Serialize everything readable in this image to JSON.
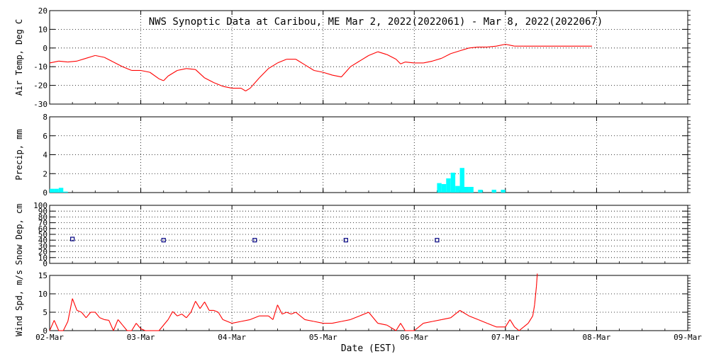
{
  "title": "NWS Synoptic Data at Caribou, ME   Mar  2, 2022(2022061) - Mar  8, 2022(2022067)",
  "xlabel": "Date (EST)",
  "x_ticks": [
    "02-Mar",
    "03-Mar",
    "04-Mar",
    "05-Mar",
    "06-Mar",
    "07-Mar",
    "08-Mar",
    "09-Mar"
  ],
  "colors": {
    "line": "#ff0000",
    "bar": "#00ffff",
    "marker": "#000080",
    "grid": "#000000"
  },
  "chart_data": [
    {
      "id": "air-temp",
      "type": "line",
      "ylabel": "Air Temp, Deg C",
      "ylim": [
        -30,
        20
      ],
      "yticks": [
        -30,
        -20,
        -10,
        0,
        10,
        20
      ],
      "grid": "dotted",
      "x_unit": "days since 02-Mar 00:00 EST",
      "x": [
        0,
        0.1,
        0.2,
        0.3,
        0.4,
        0.5,
        0.6,
        0.7,
        0.8,
        0.9,
        1.0,
        1.1,
        1.2,
        1.25,
        1.3,
        1.4,
        1.5,
        1.6,
        1.7,
        1.8,
        1.9,
        2.0,
        2.1,
        2.15,
        2.2,
        2.3,
        2.4,
        2.5,
        2.6,
        2.7,
        2.8,
        2.9,
        3.0,
        3.1,
        3.2,
        3.3,
        3.4,
        3.5,
        3.6,
        3.7,
        3.8,
        3.85,
        3.9,
        4.0,
        4.1,
        4.2,
        4.3,
        4.4,
        4.5,
        4.6,
        4.7,
        4.8,
        4.9,
        5.0,
        5.1,
        5.2,
        5.95
      ],
      "y": [
        -8,
        -7,
        -7.5,
        -7,
        -5.5,
        -4,
        -5,
        -7.5,
        -10,
        -12,
        -12,
        -13,
        -16.5,
        -17.5,
        -15,
        -12,
        -11,
        -11.5,
        -16,
        -18.5,
        -20.5,
        -21.5,
        -21.5,
        -23,
        -21.5,
        -16,
        -11,
        -8,
        -6,
        -6,
        -9,
        -12,
        -13,
        -14.5,
        -15.5,
        -10,
        -7,
        -4,
        -2,
        -3.5,
        -6,
        -8.5,
        -7.5,
        -8,
        -8,
        -7,
        -5.5,
        -3,
        -1.5,
        0,
        0.5,
        0.5,
        1,
        2,
        1,
        1,
        1
      ]
    },
    {
      "id": "precip",
      "type": "bar",
      "ylabel": "Precip, mm",
      "ylim": [
        0,
        8
      ],
      "yticks": [
        0,
        2,
        4,
        6,
        8
      ],
      "grid": "dotted",
      "x_unit": "days since 02-Mar 00:00 EST",
      "bars": [
        {
          "x": 0.0,
          "value": 0.4
        },
        {
          "x": 0.05,
          "value": 0.4
        },
        {
          "x": 0.1,
          "value": 0.5
        },
        {
          "x": 0.15,
          "value": 0.1
        },
        {
          "x": 4.25,
          "value": 1.0
        },
        {
          "x": 4.3,
          "value": 0.9
        },
        {
          "x": 4.35,
          "value": 1.5
        },
        {
          "x": 4.4,
          "value": 2.1
        },
        {
          "x": 4.45,
          "value": 0.7
        },
        {
          "x": 4.5,
          "value": 2.6
        },
        {
          "x": 4.55,
          "value": 0.6
        },
        {
          "x": 4.6,
          "value": 0.6
        },
        {
          "x": 4.7,
          "value": 0.3
        },
        {
          "x": 4.85,
          "value": 0.3
        },
        {
          "x": 4.95,
          "value": 0.3
        }
      ]
    },
    {
      "id": "snow-depth",
      "type": "scatter",
      "ylabel": "Snow Dep, cm",
      "ylim": [
        0,
        100
      ],
      "yticks": [
        0,
        10,
        20,
        30,
        40,
        50,
        60,
        70,
        80,
        90,
        100
      ],
      "grid": "dotted",
      "x_unit": "days since 02-Mar 00:00 EST",
      "x": [
        0.25,
        1.25,
        2.25,
        3.25,
        4.25
      ],
      "y": [
        42,
        40,
        40,
        40,
        40
      ]
    },
    {
      "id": "wind-speed",
      "type": "line",
      "ylabel": "Wind Spd, m/s",
      "ylim": [
        0,
        15
      ],
      "yticks": [
        0,
        5,
        10,
        15
      ],
      "grid": "dotted",
      "x_unit": "days since 02-Mar 00:00 EST",
      "x": [
        0,
        0.05,
        0.1,
        0.15,
        0.2,
        0.25,
        0.3,
        0.35,
        0.4,
        0.45,
        0.5,
        0.55,
        0.6,
        0.65,
        0.7,
        0.75,
        0.8,
        0.85,
        0.9,
        0.95,
        1.0,
        1.05,
        1.1,
        1.2,
        1.3,
        1.35,
        1.4,
        1.45,
        1.5,
        1.55,
        1.6,
        1.65,
        1.7,
        1.75,
        1.8,
        1.85,
        1.9,
        2.0,
        2.1,
        2.2,
        2.3,
        2.4,
        2.45,
        2.5,
        2.55,
        2.6,
        2.65,
        2.7,
        2.8,
        2.9,
        3.0,
        3.1,
        3.2,
        3.3,
        3.4,
        3.5,
        3.6,
        3.7,
        3.8,
        3.85,
        3.9,
        4.0,
        4.1,
        4.2,
        4.3,
        4.4,
        4.5,
        4.6,
        4.7,
        4.8,
        4.9,
        5.0,
        5.05,
        5.1,
        5.15,
        5.2,
        5.25,
        5.3,
        5.32,
        5.34,
        5.35
      ],
      "y": [
        0,
        2.8,
        0,
        0,
        2.5,
        8.7,
        5.5,
        5,
        3.5,
        5,
        5,
        3.5,
        3,
        2.8,
        0,
        3,
        1.5,
        0,
        0,
        2,
        0.5,
        0,
        0,
        0,
        3,
        5.2,
        4,
        4.5,
        3.5,
        5,
        8,
        6,
        7.8,
        5.5,
        5.5,
        5,
        3,
        2,
        2.5,
        3,
        4,
        4,
        3,
        7,
        4.5,
        5,
        4.5,
        5,
        3,
        2.5,
        2,
        2,
        2.5,
        3,
        4,
        5,
        2,
        1.5,
        0,
        2,
        0,
        0,
        2,
        2.5,
        3,
        3.5,
        5.5,
        4,
        3,
        2,
        1,
        1,
        3,
        1,
        0,
        1,
        2,
        4,
        7,
        12,
        15.5
      ]
    }
  ]
}
